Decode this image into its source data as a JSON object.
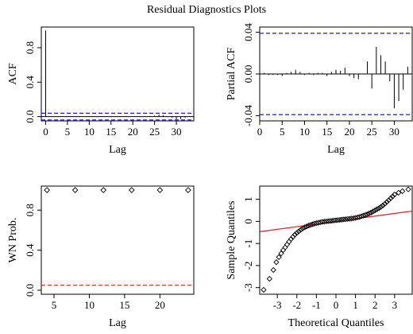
{
  "title": "Residual Diagnostics Plots",
  "colors": {
    "ci": "#1a1adb",
    "ref": "#e0191f",
    "line": "#000000"
  },
  "chart_data": [
    {
      "id": "acf",
      "type": "bar",
      "xlabel": "Lag",
      "ylabel": "ACF",
      "xlim": [
        -1,
        34
      ],
      "ylim": [
        -0.05,
        1.04
      ],
      "xticks": [
        0,
        5,
        10,
        15,
        20,
        25,
        30
      ],
      "yticks": [
        0.0,
        0.4,
        0.8
      ],
      "ytick_labels": [
        "0.0",
        "0.4",
        "0.8"
      ],
      "ci": 0.039,
      "lags": [
        0,
        1,
        2,
        3,
        4,
        5,
        6,
        7,
        8,
        9,
        10,
        11,
        12,
        13,
        14,
        15,
        16,
        17,
        18,
        19,
        20,
        21,
        22,
        23,
        24,
        25,
        26,
        27,
        28,
        29,
        30,
        31,
        32,
        33
      ],
      "values": [
        1.0,
        0.002,
        -0.002,
        0.001,
        -0.003,
        0.002,
        0.001,
        0.004,
        -0.002,
        0.001,
        0.002,
        -0.001,
        0.002,
        -0.002,
        0.001,
        0.002,
        -0.001,
        0.002,
        0.003,
        0.001,
        -0.002,
        -0.004,
        -0.004,
        -0.003,
        0.006,
        0.012,
        0.022,
        0.017,
        -0.006,
        -0.015,
        -0.032,
        -0.03,
        -0.015,
        0.006
      ]
    },
    {
      "id": "pacf",
      "type": "bar",
      "xlabel": "Lag",
      "ylabel": "Partial ACF",
      "xlim": [
        0,
        34
      ],
      "ylim": [
        -0.045,
        0.045
      ],
      "xticks": [
        0,
        5,
        10,
        15,
        20,
        25,
        30
      ],
      "yticks": [
        -0.04,
        0.0,
        0.04
      ],
      "ytick_labels": [
        "-0.04",
        "0.00",
        "0.04"
      ],
      "ci": 0.039,
      "lags": [
        1,
        2,
        3,
        4,
        5,
        6,
        7,
        8,
        9,
        10,
        11,
        12,
        13,
        14,
        15,
        16,
        17,
        18,
        19,
        20,
        21,
        22,
        23,
        24,
        25,
        26,
        27,
        28,
        29,
        30,
        31,
        32,
        33
      ],
      "values": [
        0.001,
        -0.001,
        -0.001,
        -0.001,
        -0.002,
        0.001,
        0.002,
        0.004,
        0.002,
        -0.001,
        0.001,
        -0.001,
        0.001,
        0.001,
        -0.002,
        0.002,
        0.004,
        0.003,
        0.006,
        -0.002,
        -0.004,
        -0.005,
        0.0,
        0.012,
        -0.014,
        0.026,
        0.018,
        0.012,
        -0.007,
        -0.033,
        -0.026,
        -0.015,
        0.007
      ]
    },
    {
      "id": "wn",
      "type": "scatter",
      "xlabel": "Lag",
      "ylabel": "WN Prob.",
      "xlim": [
        3.2,
        24.8
      ],
      "ylim": [
        -0.04,
        1.04
      ],
      "xticks": [
        5,
        10,
        15,
        20
      ],
      "yticks": [
        0.0,
        0.4,
        0.8
      ],
      "ytick_labels": [
        "0.0",
        "0.4",
        "0.8"
      ],
      "ref_line": 0.05,
      "x": [
        4,
        8,
        12,
        16,
        20,
        24
      ],
      "y": [
        1.0,
        1.0,
        1.0,
        1.0,
        1.0,
        1.0
      ]
    },
    {
      "id": "qq",
      "type": "scatter",
      "xlabel": "Theoretical Quantiles",
      "ylabel": "Sample Quantiles",
      "xlim": [
        -3.9,
        3.9
      ],
      "ylim": [
        -3.3,
        1.6
      ],
      "xticks": [
        -3,
        -2,
        -1,
        0,
        1,
        2,
        3
      ],
      "yticks": [
        -3,
        -2,
        -1,
        0,
        1
      ],
      "ref_line": {
        "intercept": 0.0,
        "slope": 0.12
      },
      "x": [
        -3.7,
        -3.4,
        -3.2,
        -3.05,
        -2.92,
        -2.8,
        -2.7,
        -2.6,
        -2.5,
        -2.4,
        -2.3,
        -2.2,
        -2.1,
        -2.0,
        -1.9,
        -1.8,
        -1.7,
        -1.6,
        -1.5,
        -1.4,
        -1.3,
        -1.2,
        -1.1,
        -1.0,
        -0.9,
        -0.8,
        -0.7,
        -0.6,
        -0.5,
        -0.4,
        -0.3,
        -0.2,
        -0.1,
        0.0,
        0.1,
        0.2,
        0.3,
        0.4,
        0.5,
        0.6,
        0.7,
        0.8,
        0.9,
        1.0,
        1.1,
        1.2,
        1.3,
        1.4,
        1.5,
        1.6,
        1.7,
        1.8,
        1.9,
        2.0,
        2.1,
        2.2,
        2.3,
        2.4,
        2.5,
        2.6,
        2.7,
        2.8,
        2.9,
        3.0,
        3.2,
        3.4,
        3.7
      ],
      "y": [
        -3.1,
        -2.6,
        -2.2,
        -1.85,
        -1.62,
        -1.45,
        -1.3,
        -1.18,
        -1.05,
        -0.92,
        -0.8,
        -0.7,
        -0.6,
        -0.52,
        -0.45,
        -0.38,
        -0.32,
        -0.27,
        -0.23,
        -0.19,
        -0.16,
        -0.13,
        -0.1,
        -0.08,
        -0.06,
        -0.04,
        -0.02,
        -0.01,
        0.0,
        0.01,
        0.02,
        0.03,
        0.04,
        0.05,
        0.06,
        0.07,
        0.08,
        0.09,
        0.1,
        0.11,
        0.12,
        0.13,
        0.14,
        0.16,
        0.18,
        0.2,
        0.23,
        0.26,
        0.29,
        0.32,
        0.36,
        0.4,
        0.45,
        0.5,
        0.55,
        0.6,
        0.66,
        0.72,
        0.8,
        0.88,
        0.96,
        1.05,
        1.13,
        1.22,
        1.3,
        1.37,
        1.45
      ]
    }
  ]
}
